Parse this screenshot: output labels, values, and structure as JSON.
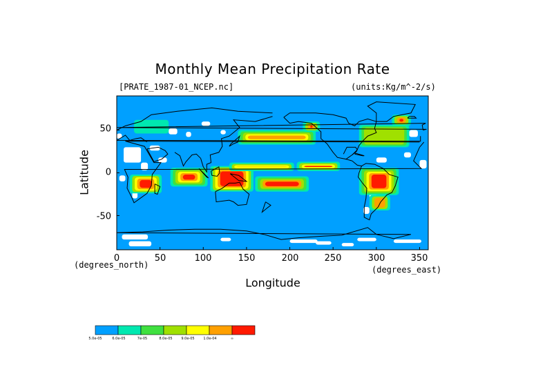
{
  "title": "Monthly Mean Precipitation Rate",
  "left_subtitle": "[PRATE_1987-01_NCEP.nc]",
  "right_subtitle": "(units:Kg/m^-2/s)",
  "chart_data": {
    "type": "heatmap",
    "title": "Monthly Mean Precipitation Rate",
    "xlabel": "Longitude",
    "ylabel": "Latitude",
    "xunit": "(degrees_north)",
    "yunit": "(degrees_east)",
    "xlim": [
      0,
      360
    ],
    "ylim": [
      -90,
      90
    ],
    "xticks": [
      0,
      50,
      100,
      150,
      200,
      250,
      300,
      350
    ],
    "yticks": [
      50,
      0,
      -50
    ],
    "colorbar": {
      "colors": [
        "#00a0ff",
        "#00e8b0",
        "#40e040",
        "#a0e000",
        "#ffff00",
        "#ffa000",
        "#ff1a00"
      ],
      "labels": [
        "5.0e-05",
        "6.0e-05",
        "7e-05",
        "8.0e-05",
        "9.0e-05",
        "1.0e-04",
        "∞"
      ]
    }
  }
}
